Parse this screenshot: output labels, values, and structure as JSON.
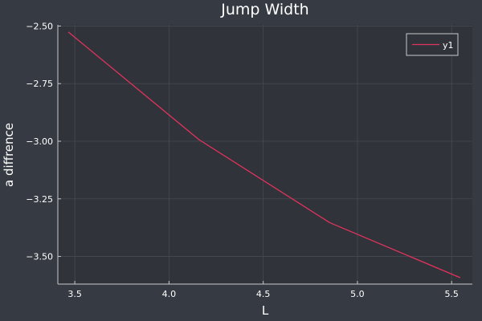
{
  "chart_data": {
    "type": "line",
    "title": "Jump Width",
    "xlabel": "L",
    "ylabel": "a diffrence",
    "xlim": [
      3.41,
      5.61
    ],
    "ylim": [
      -3.62,
      -2.495
    ],
    "xticks": [
      3.5,
      4.0,
      4.5,
      5.0,
      5.5
    ],
    "xtick_labels": [
      "3.5",
      "4.0",
      "4.5",
      "5.0",
      "5.5"
    ],
    "yticks": [
      -2.5,
      -2.75,
      -3.0,
      -3.25,
      -3.5
    ],
    "ytick_labels": [
      "−2.50",
      "−2.75",
      "−3.00",
      "−3.25",
      "−3.50"
    ],
    "grid": true,
    "legend_position": "top-right",
    "series": [
      {
        "name": "y1",
        "color": "#e2325c",
        "x": [
          3.466,
          4.159,
          4.852,
          5.545
        ],
        "y": [
          -2.526,
          -2.993,
          -3.353,
          -3.592
        ]
      }
    ]
  },
  "colors": {
    "background": "#363b43",
    "plot_area": "#30343a",
    "axis": "#c8c8c8",
    "grid": "#464a51",
    "text": "#ffffff"
  }
}
